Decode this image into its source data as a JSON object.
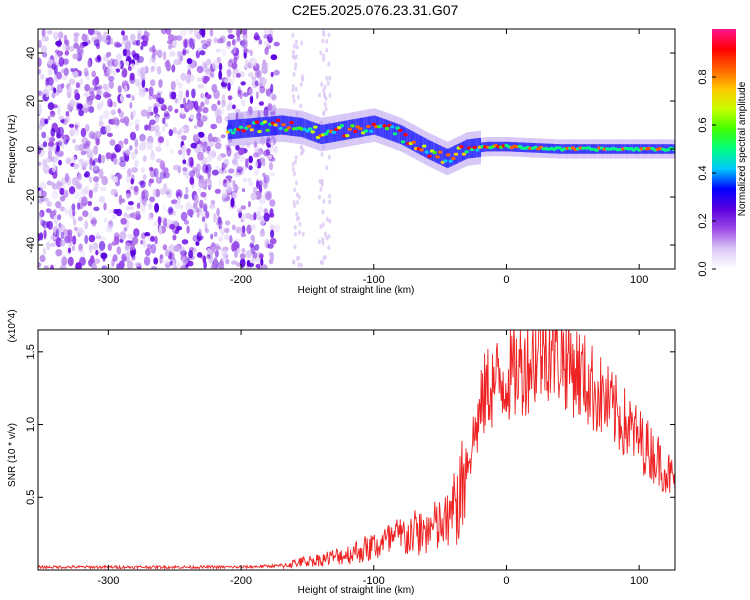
{
  "title": "C2E5.2025.076.23.31.G07",
  "chart_data": [
    {
      "type": "heatmap",
      "xlabel": "Height of straight line (km)",
      "ylabel": "Frequency (Hz)",
      "xlim": [
        -353,
        127
      ],
      "ylim": [
        -50,
        50
      ],
      "xticks": [
        -300,
        -200,
        -100,
        0,
        100
      ],
      "yticks": [
        -40,
        -20,
        0,
        20,
        40
      ],
      "colorbar": {
        "label": "Normalized spectral amplitude",
        "range": [
          0,
          1
        ],
        "ticks": [
          0.0,
          0.2,
          0.4,
          0.6,
          0.8
        ],
        "colors": [
          "#ffffff",
          "#dcc8f5",
          "#9b4ae6",
          "#5a00e0",
          "#0000ff",
          "#00c8ff",
          "#00ff80",
          "#40ff00",
          "#c8ff00",
          "#ffc800",
          "#ff6000",
          "#ff0000",
          "#ff1493"
        ]
      },
      "ridge": {
        "x": [
          -210,
          -190,
          -170,
          -155,
          -140,
          -120,
          -100,
          -80,
          -60,
          -45,
          -30,
          -15,
          0,
          40,
          80,
          127
        ],
        "frequency": [
          8,
          9,
          10,
          9,
          6,
          8,
          10,
          6,
          0,
          -4,
          0,
          1,
          1,
          0,
          0,
          0
        ]
      }
    },
    {
      "type": "line",
      "xlabel": "Height of straight line (km)",
      "ylabel": "SNR (10 * v/v)",
      "yscale_label": "(x10^4)",
      "xlim": [
        -353,
        127
      ],
      "ylim": [
        0,
        1.65
      ],
      "xticks": [
        -300,
        -200,
        -100,
        0,
        100
      ],
      "yticks": [
        0.5,
        1.0,
        1.5
      ],
      "series": [
        {
          "color": "#ee2222",
          "x": [
            -353,
            -300,
            -250,
            -200,
            -170,
            -155,
            -140,
            -120,
            -100,
            -80,
            -60,
            -45,
            -35,
            -25,
            -15,
            -5,
            5,
            20,
            30,
            45,
            60,
            80,
            100,
            115,
            127
          ],
          "y": [
            0.02,
            0.02,
            0.02,
            0.02,
            0.03,
            0.06,
            0.08,
            0.12,
            0.18,
            0.25,
            0.3,
            0.35,
            0.55,
            0.9,
            1.25,
            1.3,
            1.35,
            1.45,
            1.55,
            1.45,
            1.3,
            1.1,
            0.9,
            0.75,
            0.6
          ]
        }
      ]
    }
  ]
}
